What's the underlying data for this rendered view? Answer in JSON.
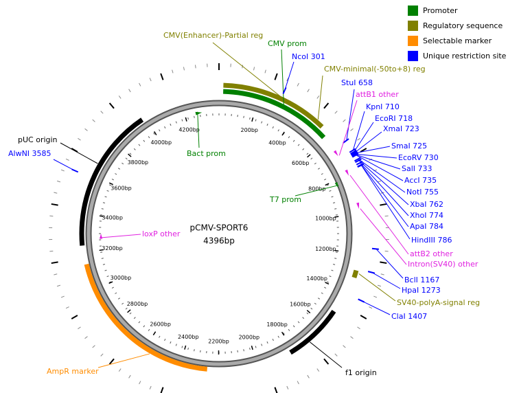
{
  "title": "pCMV-SPORT6",
  "length": "4396bp",
  "legend": [
    {
      "label": "Promoter",
      "color": "#008000"
    },
    {
      "label": "Regulatory sequence",
      "color": "#808000"
    },
    {
      "label": "Selectable marker",
      "color": "#ff8c00"
    },
    {
      "label": "Unique restriction site",
      "color": "#0000ff"
    }
  ],
  "ruler_labels": [
    "200bp",
    "400bp",
    "600bp",
    "800bp",
    "1000bp",
    "1200bp",
    "1400bp",
    "1600bp",
    "1800bp",
    "2000bp",
    "2200bp",
    "2400bp",
    "2600bp",
    "2800bp",
    "3000bp",
    "3200bp",
    "3400bp",
    "3600bp",
    "3800bp",
    "4000bp",
    "4200bp"
  ],
  "annotations": [
    {
      "label": "CMV(Enhancer)-Partial reg",
      "color": "#808000"
    },
    {
      "label": "CMV prom",
      "color": "#008000"
    },
    {
      "label": "NcoI 301",
      "color": "#0000ff"
    },
    {
      "label": "CMV-minimal(-50to+8) reg",
      "color": "#808000"
    },
    {
      "label": "StuI 658",
      "color": "#0000ff"
    },
    {
      "label": "attB1 other",
      "color": "#e020e0"
    },
    {
      "label": "KpnI 710",
      "color": "#0000ff"
    },
    {
      "label": "EcoRI 718",
      "color": "#0000ff"
    },
    {
      "label": "XmaI 723",
      "color": "#0000ff"
    },
    {
      "label": "SmaI 725",
      "color": "#0000ff"
    },
    {
      "label": "EcoRV 730",
      "color": "#0000ff"
    },
    {
      "label": "SalI 733",
      "color": "#0000ff"
    },
    {
      "label": "AccI 735",
      "color": "#0000ff"
    },
    {
      "label": "NotI 755",
      "color": "#0000ff"
    },
    {
      "label": "XbaI 762",
      "color": "#0000ff"
    },
    {
      "label": "XhoI 774",
      "color": "#0000ff"
    },
    {
      "label": "ApaI 784",
      "color": "#0000ff"
    },
    {
      "label": "HindIII 786",
      "color": "#0000ff"
    },
    {
      "label": "attB2 other",
      "color": "#e020e0"
    },
    {
      "label": "Intron(SV40) other",
      "color": "#e020e0"
    },
    {
      "label": "BclI 1167",
      "color": "#0000ff"
    },
    {
      "label": "HpaI 1273",
      "color": "#0000ff"
    },
    {
      "label": "SV40-polyA-signal reg",
      "color": "#808000"
    },
    {
      "label": "ClaI 1407",
      "color": "#0000ff"
    },
    {
      "label": "f1 origin",
      "color": "#000000"
    },
    {
      "label": "AmpR marker",
      "color": "#ff8c00"
    },
    {
      "label": "pUC origin",
      "color": "#000000"
    },
    {
      "label": "AlwNI 3585",
      "color": "#0000ff"
    },
    {
      "label": "loxP other",
      "color": "#e020e0"
    },
    {
      "label": "Bact prom",
      "color": "#008000"
    },
    {
      "label": "T7 prom",
      "color": "#008000"
    }
  ]
}
